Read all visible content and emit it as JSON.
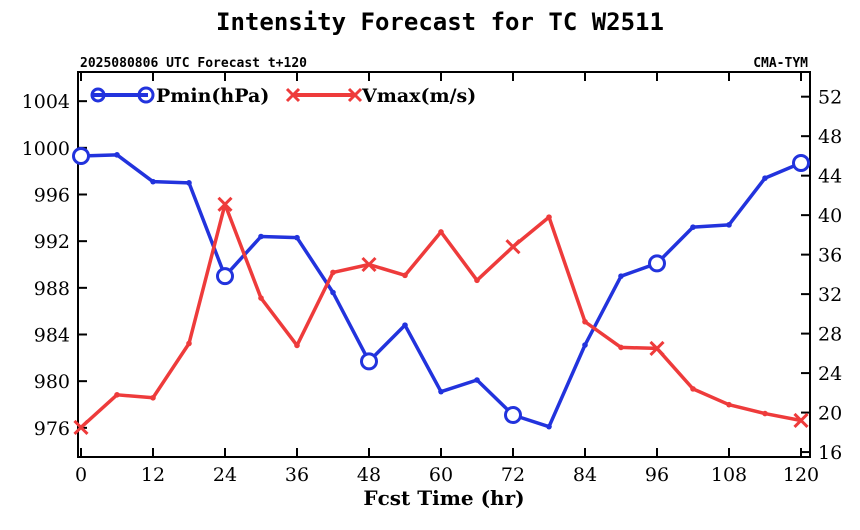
{
  "title": "Intensity Forecast for TC W2511",
  "subtitle_left": "2025080806 UTC Forecast t+120",
  "subtitle_right": "CMA-TYM",
  "colors": {
    "pmin": "#2233dd",
    "vmax": "#ee3b3b",
    "axis": "#000000"
  },
  "chart_data": {
    "type": "line",
    "xlabel": "Fcst Time (hr)",
    "xlim": [
      -0.5,
      121.5
    ],
    "xticks": [
      0,
      12,
      24,
      36,
      48,
      60,
      72,
      84,
      96,
      108,
      120
    ],
    "y_left": {
      "lim": [
        973.5,
        1006.5
      ],
      "ticks": [
        976,
        980,
        984,
        988,
        992,
        996,
        1000,
        1004
      ]
    },
    "y_right": {
      "lim": [
        15.5,
        54.5
      ],
      "ticks": [
        16,
        20,
        24,
        28,
        32,
        36,
        40,
        44,
        48,
        52
      ]
    },
    "legend_placement": "top-left",
    "grid": false,
    "x": [
      0,
      6,
      12,
      18,
      24,
      30,
      36,
      42,
      48,
      54,
      60,
      66,
      72,
      78,
      84,
      90,
      96,
      102,
      108,
      114,
      120
    ],
    "series": [
      {
        "name": "Pmin(hPa)",
        "axis": "left",
        "marker": "circle",
        "highlight_every": 24,
        "values": [
          999.3,
          999.4,
          997.1,
          997.0,
          989.0,
          992.4,
          992.3,
          987.6,
          981.7,
          984.8,
          979.1,
          980.1,
          977.1,
          976.1,
          983.1,
          989.0,
          990.1,
          993.2,
          993.4,
          997.4,
          998.7
        ]
      },
      {
        "name": "Vmax(m/s)",
        "axis": "right",
        "marker": "x",
        "highlight_every": 24,
        "values": [
          18.5,
          21.8,
          21.5,
          27.0,
          41.1,
          31.6,
          26.8,
          34.2,
          35.0,
          33.9,
          38.3,
          33.4,
          36.8,
          39.8,
          29.2,
          26.6,
          26.5,
          22.4,
          20.8,
          19.9,
          19.2
        ]
      }
    ]
  }
}
